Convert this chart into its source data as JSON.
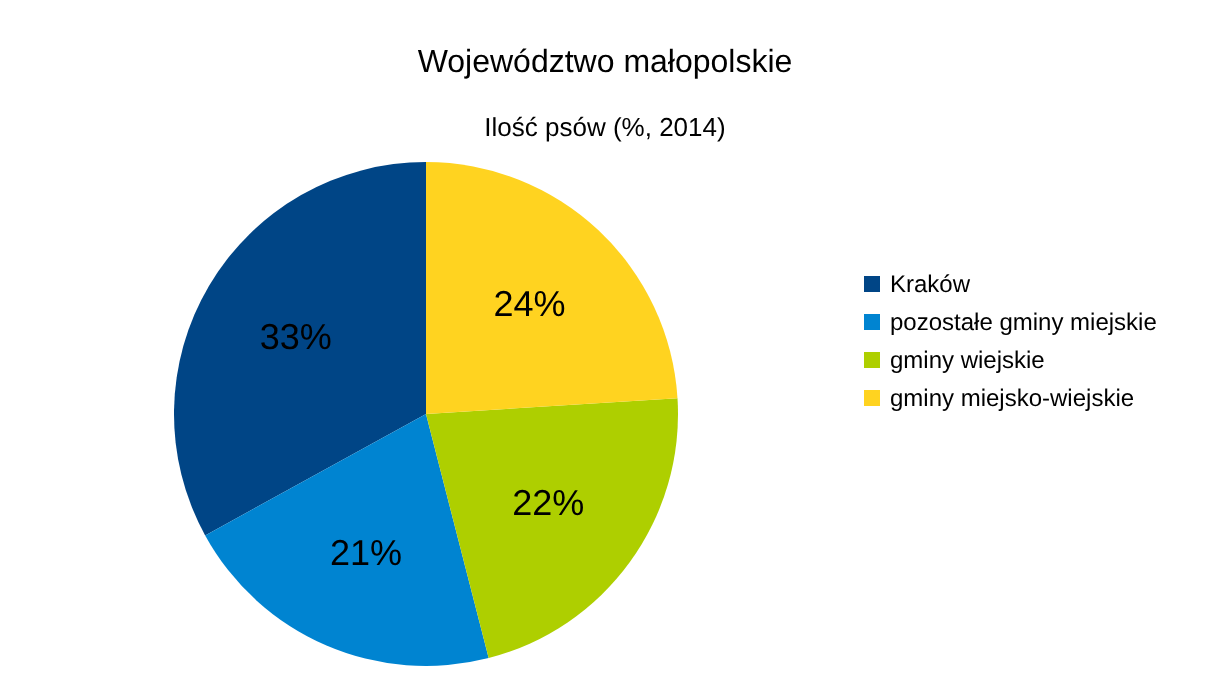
{
  "chart_data": {
    "type": "pie",
    "title": "Województwo małopolskie",
    "subtitle": "Ilość psów (%, 2014)",
    "categories": [
      "Kraków",
      "pozostałe gminy miejskie",
      "gminy wiejskie",
      "gminy miejsko-wiejskie"
    ],
    "values": [
      33,
      21,
      22,
      24
    ],
    "colors": [
      "#004586",
      "#0084d1",
      "#aecf00",
      "#ffd320"
    ],
    "value_labels": [
      "33%",
      "21%",
      "22%",
      "24%"
    ],
    "legend": "right"
  }
}
